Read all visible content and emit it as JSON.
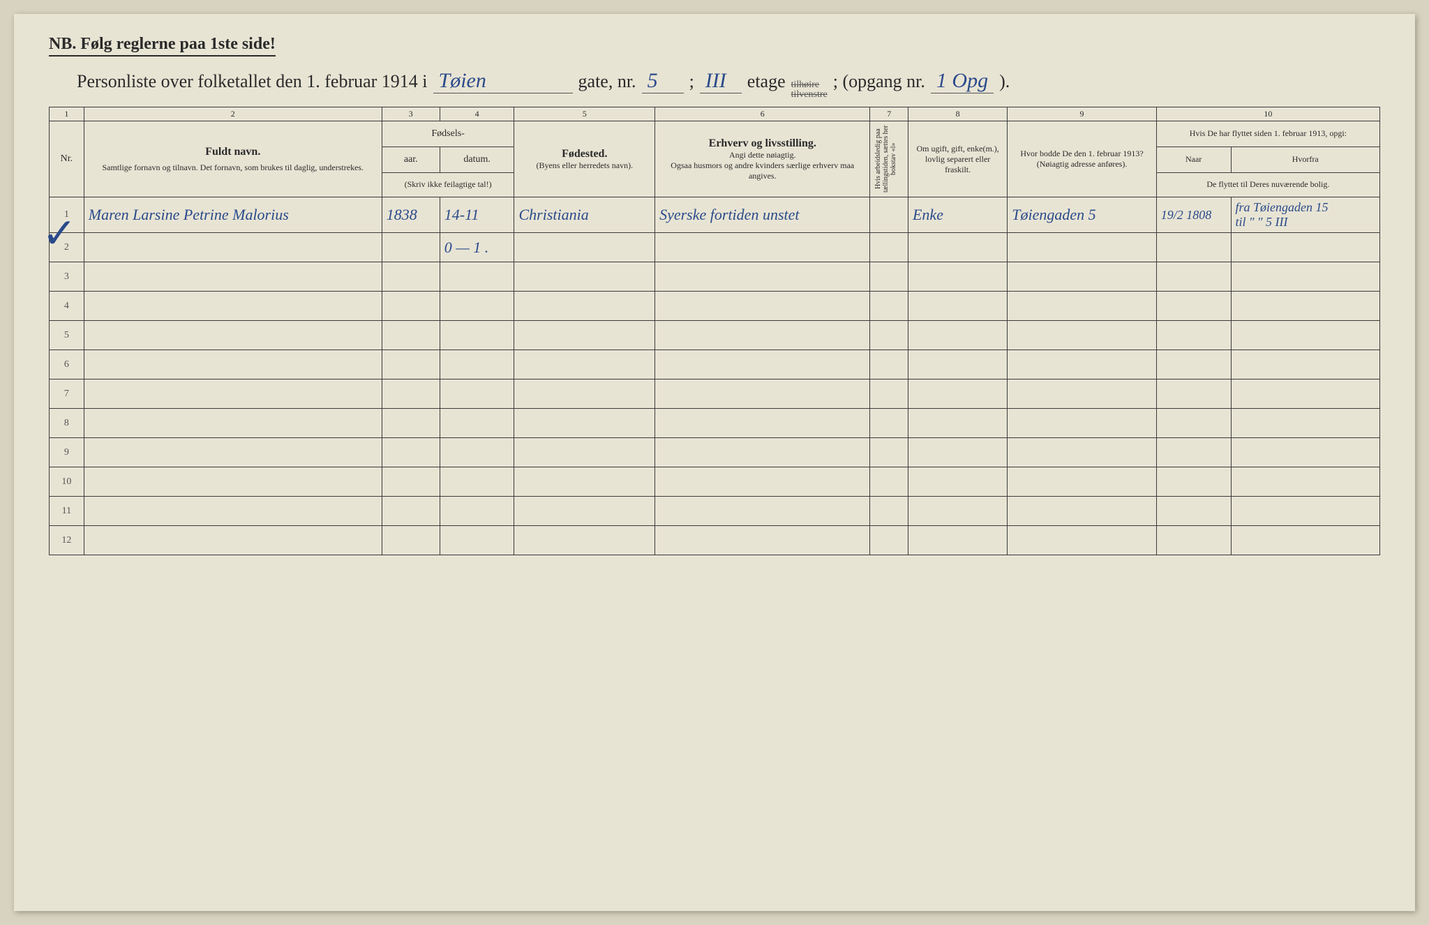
{
  "header": {
    "nb_text": "NB.  Følg reglerne paa 1ste side!",
    "title_prefix": "Personliste over folketallet den 1. februar 1914 i",
    "street_name": "Tøien",
    "gate_label": "gate, nr.",
    "gate_nr": "5",
    "semicolon": ";",
    "etage_value": "III",
    "etage_label": "etage",
    "strikethrough1": "tilhøire",
    "strikethrough2": "tilvenstre",
    "opgang_label": "; (opgang nr.",
    "opgang_value": "1 Opg",
    "close_paren": ")."
  },
  "column_numbers": [
    "1",
    "2",
    "3",
    "4",
    "5",
    "6",
    "7",
    "8",
    "9",
    "10"
  ],
  "headers": {
    "nr": "Nr.",
    "fuldt_navn": "Fuldt navn.",
    "fuldt_sub": "Samtlige fornavn og tilnavn.  Det fornavn, som brukes til daglig, understrekes.",
    "fodsels": "Fødsels-",
    "aar": "aar.",
    "datum": "datum.",
    "skriv_note": "(Skriv ikke feilagtige tal!)",
    "fodested": "Fødested.",
    "fodested_sub": "(Byens eller herredets navn).",
    "erhverv": "Erhverv og livsstilling.",
    "erhverv_sub1": "Angi dette nøiagtig.",
    "erhverv_sub2": "Ogsaa husmors og andre kvinders særlige erhverv maa angives.",
    "col7_text": "Hvis arbeidsledig paa tællingstiden, sættes her bokstav «l»",
    "col8": "Om ugift, gift, enke(m.), lovlig separert eller fraskilt.",
    "col9": "Hvor bodde De den 1. februar 1913?",
    "col9_sub": "(Nøiagtig adresse anføres).",
    "col10": "Hvis De har flyttet siden 1. februar 1913, opgi:",
    "col10a": "Naar",
    "col10b": "Hvorfra",
    "col10_sub": "De flyttet til Deres nuværende bolig."
  },
  "rows": [
    {
      "nr": "1",
      "name": "Maren Larsine Petrine Malorius",
      "year": "1838",
      "date": "14-11",
      "birthplace": "Christiania",
      "occupation": "Syerske fortiden unstet",
      "col7": "",
      "col8": "Enke",
      "col9": "Tøiengaden 5",
      "col10a": "19/2 1808",
      "col10b_line1": "fra Tøiengaden 15",
      "col10b_line2": "til ″ ″ 5 III"
    },
    {
      "nr": "2",
      "name": "",
      "year": "",
      "date": "0 — 1 .",
      "birthplace": "",
      "occupation": "",
      "col7": "",
      "col8": "",
      "col9": "",
      "col10a": "",
      "col10b_line1": "",
      "col10b_line2": ""
    }
  ],
  "empty_row_numbers": [
    "3",
    "4",
    "5",
    "6",
    "7",
    "8",
    "9",
    "10",
    "11",
    "12"
  ],
  "colors": {
    "page_bg": "#e8e4d4",
    "body_bg": "#d8d3c0",
    "ink": "#2a2a2a",
    "handwriting": "#2a4a8a",
    "border": "#3a3a3a"
  }
}
